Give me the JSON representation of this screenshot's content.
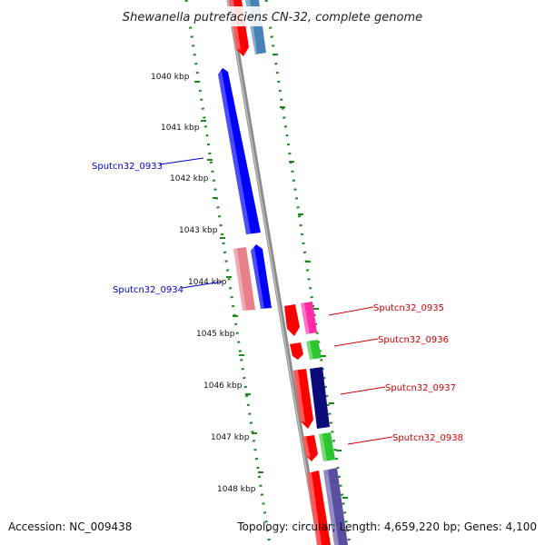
{
  "title": "Shewanella putrefaciens CN-32, complete genome",
  "footer": {
    "accession": "Accession: NC_009438",
    "summary": "Topology: circular; Length: 4,659,220 bp; Genes: 4,100"
  },
  "ticks": [
    {
      "label": "1040 kbp",
      "pos": 1040
    },
    {
      "label": "1041 kbp",
      "pos": 1041
    },
    {
      "label": "1042 kbp",
      "pos": 1042
    },
    {
      "label": "1043 kbp",
      "pos": 1043
    },
    {
      "label": "1044 kbp",
      "pos": 1044
    },
    {
      "label": "1045 kbp",
      "pos": 1045
    },
    {
      "label": "1046 kbp",
      "pos": 1046
    },
    {
      "label": "1047 kbp",
      "pos": 1047
    },
    {
      "label": "1048 kbp",
      "pos": 1048
    }
  ],
  "gene_labels": [
    {
      "label": "Sputcn32_0933",
      "color": "#0000cc"
    },
    {
      "label": "Sputcn32_0934",
      "color": "#0000cc"
    },
    {
      "label": "Sputcn32_0935",
      "color": "#cc0000"
    },
    {
      "label": "Sputcn32_0936",
      "color": "#cc0000"
    },
    {
      "label": "Sputcn32_0937",
      "color": "#cc0000"
    },
    {
      "label": "Sputcn32_0938",
      "color": "#cc0000"
    }
  ],
  "colors": {
    "backbone": "#8c8c8c",
    "gc_dots": "#1a8a1a",
    "strand_minus": "#0000ff",
    "strand_plus": "#ff0000",
    "category_pink": "#e8808a",
    "category_magenta": "#ff2aa6",
    "category_green": "#2ec62e",
    "category_navy": "#0a0a7a",
    "category_steel": "#4682b4",
    "category_slate": "#5a4ea0"
  }
}
